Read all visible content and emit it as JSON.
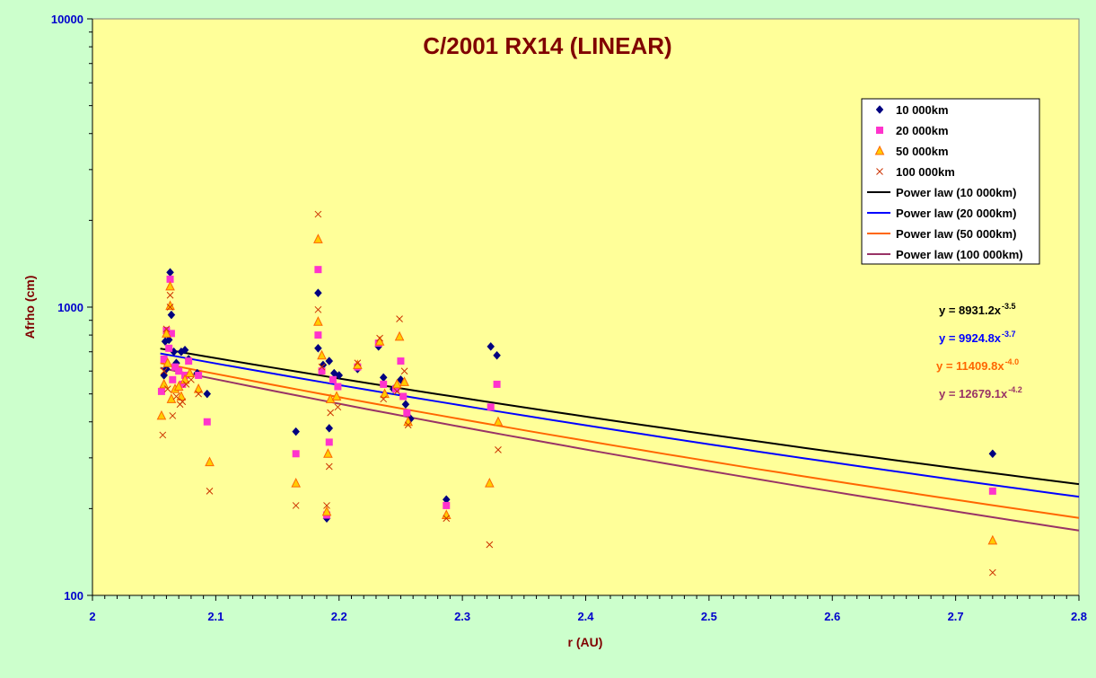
{
  "chart_data": {
    "type": "scatter",
    "title": "C/2001 RX14 (LINEAR)",
    "xlabel": "r (AU)",
    "ylabel": "Afrho (cm)",
    "xlim": [
      2,
      2.8
    ],
    "ylim": [
      100,
      10000
    ],
    "y_scale": "log",
    "x_ticks": [
      "2",
      "2.1",
      "2.2",
      "2.3",
      "2.4",
      "2.5",
      "2.6",
      "2.7",
      "2.8"
    ],
    "y_ticks": [
      "100",
      "1000",
      "10000"
    ],
    "grid": false,
    "legend_position": "top-right",
    "plot_background": "#ffff99",
    "page_background": "#ccffcc",
    "series": [
      {
        "name": "10 000km",
        "marker": "diamond",
        "color": "#000080",
        "points": [
          [
            2.058,
            580
          ],
          [
            2.059,
            760
          ],
          [
            2.06,
            610
          ],
          [
            2.061,
            820
          ],
          [
            2.062,
            770
          ],
          [
            2.063,
            1320
          ],
          [
            2.064,
            940
          ],
          [
            2.066,
            700
          ],
          [
            2.068,
            640
          ],
          [
            2.072,
            700
          ],
          [
            2.075,
            710
          ],
          [
            2.078,
            660
          ],
          [
            2.085,
            590
          ],
          [
            2.093,
            500
          ],
          [
            2.165,
            370
          ],
          [
            2.183,
            1120
          ],
          [
            2.183,
            720
          ],
          [
            2.187,
            630
          ],
          [
            2.19,
            185
          ],
          [
            2.192,
            650
          ],
          [
            2.192,
            380
          ],
          [
            2.196,
            590
          ],
          [
            2.2,
            580
          ],
          [
            2.215,
            610
          ],
          [
            2.232,
            730
          ],
          [
            2.236,
            570
          ],
          [
            2.244,
            520
          ],
          [
            2.25,
            560
          ],
          [
            2.254,
            460
          ],
          [
            2.258,
            410
          ],
          [
            2.287,
            215
          ],
          [
            2.323,
            730
          ],
          [
            2.328,
            680
          ],
          [
            2.73,
            310
          ]
        ]
      },
      {
        "name": "20 000km",
        "marker": "square",
        "color": "#ff33cc",
        "points": [
          [
            2.056,
            510
          ],
          [
            2.058,
            660
          ],
          [
            2.06,
            830
          ],
          [
            2.062,
            720
          ],
          [
            2.063,
            1250
          ],
          [
            2.064,
            810
          ],
          [
            2.065,
            560
          ],
          [
            2.067,
            620
          ],
          [
            2.07,
            600
          ],
          [
            2.073,
            540
          ],
          [
            2.075,
            580
          ],
          [
            2.078,
            650
          ],
          [
            2.086,
            580
          ],
          [
            2.093,
            400
          ],
          [
            2.165,
            310
          ],
          [
            2.183,
            1350
          ],
          [
            2.183,
            800
          ],
          [
            2.186,
            600
          ],
          [
            2.19,
            190
          ],
          [
            2.192,
            340
          ],
          [
            2.195,
            560
          ],
          [
            2.199,
            530
          ],
          [
            2.215,
            620
          ],
          [
            2.232,
            750
          ],
          [
            2.236,
            540
          ],
          [
            2.246,
            520
          ],
          [
            2.25,
            650
          ],
          [
            2.252,
            490
          ],
          [
            2.255,
            430
          ],
          [
            2.287,
            205
          ],
          [
            2.323,
            450
          ],
          [
            2.328,
            540
          ],
          [
            2.73,
            230
          ]
        ]
      },
      {
        "name": "50 000km",
        "marker": "triangle",
        "color": "#ff6600",
        "fill": "#ffcc00",
        "points": [
          [
            2.056,
            420
          ],
          [
            2.058,
            540
          ],
          [
            2.06,
            810
          ],
          [
            2.061,
            640
          ],
          [
            2.063,
            1180
          ],
          [
            2.063,
            1010
          ],
          [
            2.064,
            480
          ],
          [
            2.067,
            520
          ],
          [
            2.07,
            530
          ],
          [
            2.072,
            490
          ],
          [
            2.075,
            560
          ],
          [
            2.079,
            590
          ],
          [
            2.086,
            520
          ],
          [
            2.095,
            290
          ],
          [
            2.165,
            245
          ],
          [
            2.183,
            1720
          ],
          [
            2.183,
            890
          ],
          [
            2.186,
            680
          ],
          [
            2.19,
            195
          ],
          [
            2.191,
            310
          ],
          [
            2.193,
            480
          ],
          [
            2.198,
            490
          ],
          [
            2.215,
            630
          ],
          [
            2.233,
            760
          ],
          [
            2.237,
            500
          ],
          [
            2.247,
            540
          ],
          [
            2.249,
            790
          ],
          [
            2.253,
            550
          ],
          [
            2.256,
            400
          ],
          [
            2.287,
            190
          ],
          [
            2.322,
            245
          ],
          [
            2.329,
            400
          ],
          [
            2.73,
            155
          ]
        ]
      },
      {
        "name": "100 000km",
        "marker": "x",
        "color": "#cc3300",
        "points": [
          [
            2.057,
            360
          ],
          [
            2.058,
            600
          ],
          [
            2.06,
            840
          ],
          [
            2.061,
            520
          ],
          [
            2.063,
            1100
          ],
          [
            2.063,
            1000
          ],
          [
            2.065,
            420
          ],
          [
            2.068,
            490
          ],
          [
            2.071,
            460
          ],
          [
            2.073,
            470
          ],
          [
            2.076,
            540
          ],
          [
            2.08,
            560
          ],
          [
            2.086,
            500
          ],
          [
            2.095,
            230
          ],
          [
            2.165,
            205
          ],
          [
            2.183,
            2100
          ],
          [
            2.183,
            980
          ],
          [
            2.186,
            620
          ],
          [
            2.19,
            205
          ],
          [
            2.192,
            280
          ],
          [
            2.193,
            430
          ],
          [
            2.199,
            450
          ],
          [
            2.215,
            640
          ],
          [
            2.233,
            780
          ],
          [
            2.236,
            480
          ],
          [
            2.247,
            510
          ],
          [
            2.249,
            910
          ],
          [
            2.253,
            600
          ],
          [
            2.256,
            390
          ],
          [
            2.287,
            185
          ],
          [
            2.322,
            150
          ],
          [
            2.329,
            320
          ],
          [
            2.73,
            120
          ]
        ]
      }
    ],
    "fits": [
      {
        "name": "Power law (10 000km)",
        "coef": 8931.2,
        "exp": -3.5,
        "equation_base": "y = 8931.2x",
        "equation_exp": "-3.5",
        "color": "#000000"
      },
      {
        "name": "Power law (20 000km)",
        "coef": 9924.8,
        "exp": -3.7,
        "equation_base": "y = 9924.8x",
        "equation_exp": "-3.7",
        "color": "#0000ff"
      },
      {
        "name": "Power law (50 000km)",
        "coef": 11409.8,
        "exp": -4.0,
        "equation_base": "y = 11409.8x",
        "equation_exp": "-4.0",
        "color": "#ff6600"
      },
      {
        "name": "Power law (100 000km)",
        "coef": 12679.1,
        "exp": -4.2,
        "equation_base": "y = 12679.1x",
        "equation_exp": "-4.2",
        "color": "#993366"
      }
    ]
  }
}
